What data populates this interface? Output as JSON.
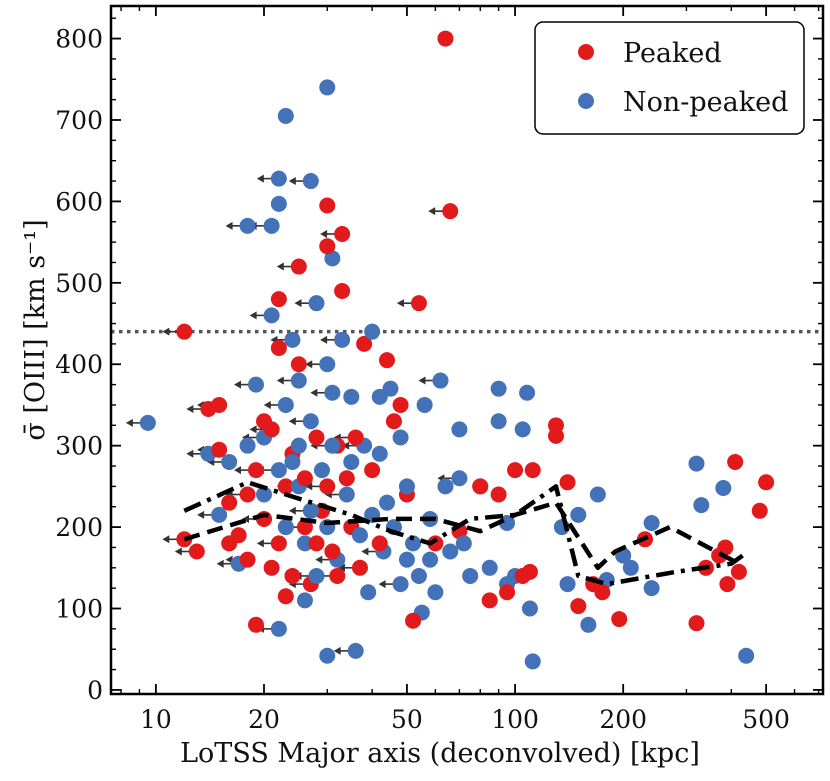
{
  "chart_data": {
    "type": "scatter",
    "xscale": "log",
    "xlim": [
      7.5,
      720
    ],
    "ylim": [
      -5,
      840
    ],
    "xlabel": "LoTSS Major axis (deconvolved) [kpc]",
    "ylabel": "σ̄ [OIII] [km s⁻¹]",
    "x_ticks": [
      10,
      20,
      50,
      100,
      200,
      500
    ],
    "x_tick_labels": [
      "10",
      "20",
      "50",
      "100",
      "200",
      "500"
    ],
    "y_ticks": [
      0,
      100,
      200,
      300,
      400,
      500,
      600,
      700,
      800
    ],
    "y_tick_labels": [
      "0",
      "100",
      "200",
      "300",
      "400",
      "500",
      "600",
      "700",
      "800"
    ],
    "legend": {
      "location": "top-right",
      "entries": [
        "Peaked",
        "Non-peaked"
      ]
    },
    "colors": {
      "peaked": "#e31a1c",
      "nonpeaked": "#4472b8",
      "lines": "#000000",
      "arrow": "#333333",
      "hline": "#555555"
    },
    "hline": {
      "y": 440,
      "style": "dotted"
    },
    "series": [
      {
        "name": "Peaked",
        "points": [
          [
            12,
            440
          ],
          [
            12,
            185
          ],
          [
            13,
            170
          ],
          [
            14,
            345
          ],
          [
            15,
            350
          ],
          [
            15,
            295
          ],
          [
            16,
            180
          ],
          [
            16,
            230
          ],
          [
            17,
            190
          ],
          [
            18,
            240
          ],
          [
            18,
            160
          ],
          [
            19,
            80
          ],
          [
            19,
            270
          ],
          [
            20,
            330
          ],
          [
            20,
            210
          ],
          [
            21,
            320
          ],
          [
            21,
            150
          ],
          [
            22,
            420
          ],
          [
            22,
            480
          ],
          [
            22,
            180
          ],
          [
            23,
            250
          ],
          [
            23,
            115
          ],
          [
            24,
            290
          ],
          [
            24,
            140
          ],
          [
            25,
            520
          ],
          [
            25,
            400
          ],
          [
            26,
            200
          ],
          [
            26,
            260
          ],
          [
            27,
            130
          ],
          [
            28,
            310
          ],
          [
            28,
            180
          ],
          [
            29,
            220
          ],
          [
            30,
            545
          ],
          [
            30,
            595
          ],
          [
            30,
            250
          ],
          [
            31,
            170
          ],
          [
            32,
            300
          ],
          [
            32,
            140
          ],
          [
            33,
            490
          ],
          [
            33,
            560
          ],
          [
            34,
            260
          ],
          [
            35,
            200
          ],
          [
            36,
            310
          ],
          [
            37,
            150
          ],
          [
            38,
            425
          ],
          [
            40,
            270
          ],
          [
            42,
            180
          ],
          [
            44,
            405
          ],
          [
            46,
            330
          ],
          [
            48,
            350
          ],
          [
            50,
            240
          ],
          [
            52,
            85
          ],
          [
            54,
            475
          ],
          [
            60,
            180
          ],
          [
            64,
            800
          ],
          [
            66,
            588
          ],
          [
            70,
            195
          ],
          [
            80,
            250
          ],
          [
            85,
            110
          ],
          [
            90,
            240
          ],
          [
            95,
            120
          ],
          [
            100,
            270
          ],
          [
            105,
            140
          ],
          [
            110,
            145
          ],
          [
            112,
            270
          ],
          [
            130,
            325
          ],
          [
            130,
            312
          ],
          [
            140,
            255
          ],
          [
            150,
            103
          ],
          [
            165,
            130
          ],
          [
            175,
            120
          ],
          [
            195,
            87
          ],
          [
            230,
            185
          ],
          [
            320,
            82
          ],
          [
            340,
            150
          ],
          [
            370,
            165
          ],
          [
            385,
            175
          ],
          [
            390,
            130
          ],
          [
            410,
            280
          ],
          [
            420,
            145
          ],
          [
            480,
            220
          ],
          [
            500,
            255
          ]
        ]
      },
      {
        "name": "Non-peaked",
        "points": [
          [
            9.5,
            328
          ],
          [
            14,
            290
          ],
          [
            15,
            215
          ],
          [
            16,
            280
          ],
          [
            17,
            155
          ],
          [
            18,
            300
          ],
          [
            18,
            570
          ],
          [
            19,
            375
          ],
          [
            20,
            240
          ],
          [
            20,
            310
          ],
          [
            21,
            460
          ],
          [
            21,
            570
          ],
          [
            21,
            320
          ],
          [
            22,
            628
          ],
          [
            22,
            597
          ],
          [
            22,
            75
          ],
          [
            22,
            270
          ],
          [
            23,
            705
          ],
          [
            23,
            350
          ],
          [
            23,
            200
          ],
          [
            24,
            430
          ],
          [
            24,
            280
          ],
          [
            25,
            380
          ],
          [
            25,
            300
          ],
          [
            25,
            250
          ],
          [
            26,
            180
          ],
          [
            26,
            110
          ],
          [
            27,
            625
          ],
          [
            27,
            330
          ],
          [
            27,
            220
          ],
          [
            28,
            475
          ],
          [
            28,
            140
          ],
          [
            29,
            270
          ],
          [
            30,
            740
          ],
          [
            30,
            400
          ],
          [
            30,
            200
          ],
          [
            30,
            42
          ],
          [
            31,
            530
          ],
          [
            31,
            300
          ],
          [
            31,
            365
          ],
          [
            32,
            160
          ],
          [
            33,
            430
          ],
          [
            34,
            240
          ],
          [
            35,
            360
          ],
          [
            35,
            280
          ],
          [
            36,
            48
          ],
          [
            37,
            190
          ],
          [
            38,
            300
          ],
          [
            39,
            120
          ],
          [
            40,
            440
          ],
          [
            40,
            215
          ],
          [
            42,
            360
          ],
          [
            42,
            290
          ],
          [
            43,
            170
          ],
          [
            44,
            230
          ],
          [
            45,
            370
          ],
          [
            46,
            200
          ],
          [
            48,
            310
          ],
          [
            48,
            130
          ],
          [
            50,
            250
          ],
          [
            50,
            160
          ],
          [
            52,
            180
          ],
          [
            54,
            140
          ],
          [
            55,
            95
          ],
          [
            56,
            350
          ],
          [
            58,
            210
          ],
          [
            58,
            160
          ],
          [
            60,
            120
          ],
          [
            62,
            380
          ],
          [
            64,
            250
          ],
          [
            66,
            170
          ],
          [
            70,
            320
          ],
          [
            70,
            260
          ],
          [
            72,
            180
          ],
          [
            75,
            140
          ],
          [
            80,
            250
          ],
          [
            85,
            150
          ],
          [
            90,
            370
          ],
          [
            90,
            330
          ],
          [
            95,
            205
          ],
          [
            95,
            130
          ],
          [
            100,
            140
          ],
          [
            105,
            320
          ],
          [
            108,
            365
          ],
          [
            110,
            100
          ],
          [
            112,
            35
          ],
          [
            135,
            200
          ],
          [
            140,
            130
          ],
          [
            150,
            215
          ],
          [
            160,
            80
          ],
          [
            170,
            240
          ],
          [
            180,
            135
          ],
          [
            200,
            165
          ],
          [
            210,
            150
          ],
          [
            240,
            205
          ],
          [
            240,
            125
          ],
          [
            320,
            278
          ],
          [
            330,
            227
          ],
          [
            380,
            248
          ],
          [
            440,
            42
          ]
        ]
      }
    ],
    "upper_limit_point_indices": {
      "Peaked": [
        0,
        1,
        2,
        3,
        4,
        5,
        9,
        10,
        12,
        14,
        19,
        24,
        26,
        28,
        34,
        37,
        39,
        42,
        43,
        52,
        55
      ],
      "Non-peaked": [
        0,
        1,
        2,
        3,
        4,
        6,
        7,
        9,
        10,
        11,
        12,
        13,
        15,
        16,
        18,
        20,
        22,
        24,
        27,
        28,
        29,
        30,
        31,
        34,
        38,
        39,
        40,
        41,
        42,
        45,
        47,
        53,
        58,
        68,
        72
      ]
    },
    "median_lines": [
      {
        "name": "Peaked median",
        "style": "dashed",
        "x": [
          12,
          20,
          30,
          45,
          60,
          80,
          100,
          130,
          170,
          190,
          270,
          420
        ],
        "y": [
          185,
          215,
          205,
          210,
          210,
          195,
          215,
          230,
          150,
          170,
          200,
          155
        ]
      },
      {
        "name": "Non-peaked median",
        "style": "dashdot",
        "x": [
          12,
          18,
          25,
          35,
          45,
          58,
          75,
          100,
          130,
          150,
          180,
          280,
          400,
          430
        ],
        "y": [
          220,
          255,
          235,
          215,
          195,
          180,
          210,
          215,
          250,
          140,
          130,
          145,
          155,
          165
        ]
      }
    ]
  }
}
